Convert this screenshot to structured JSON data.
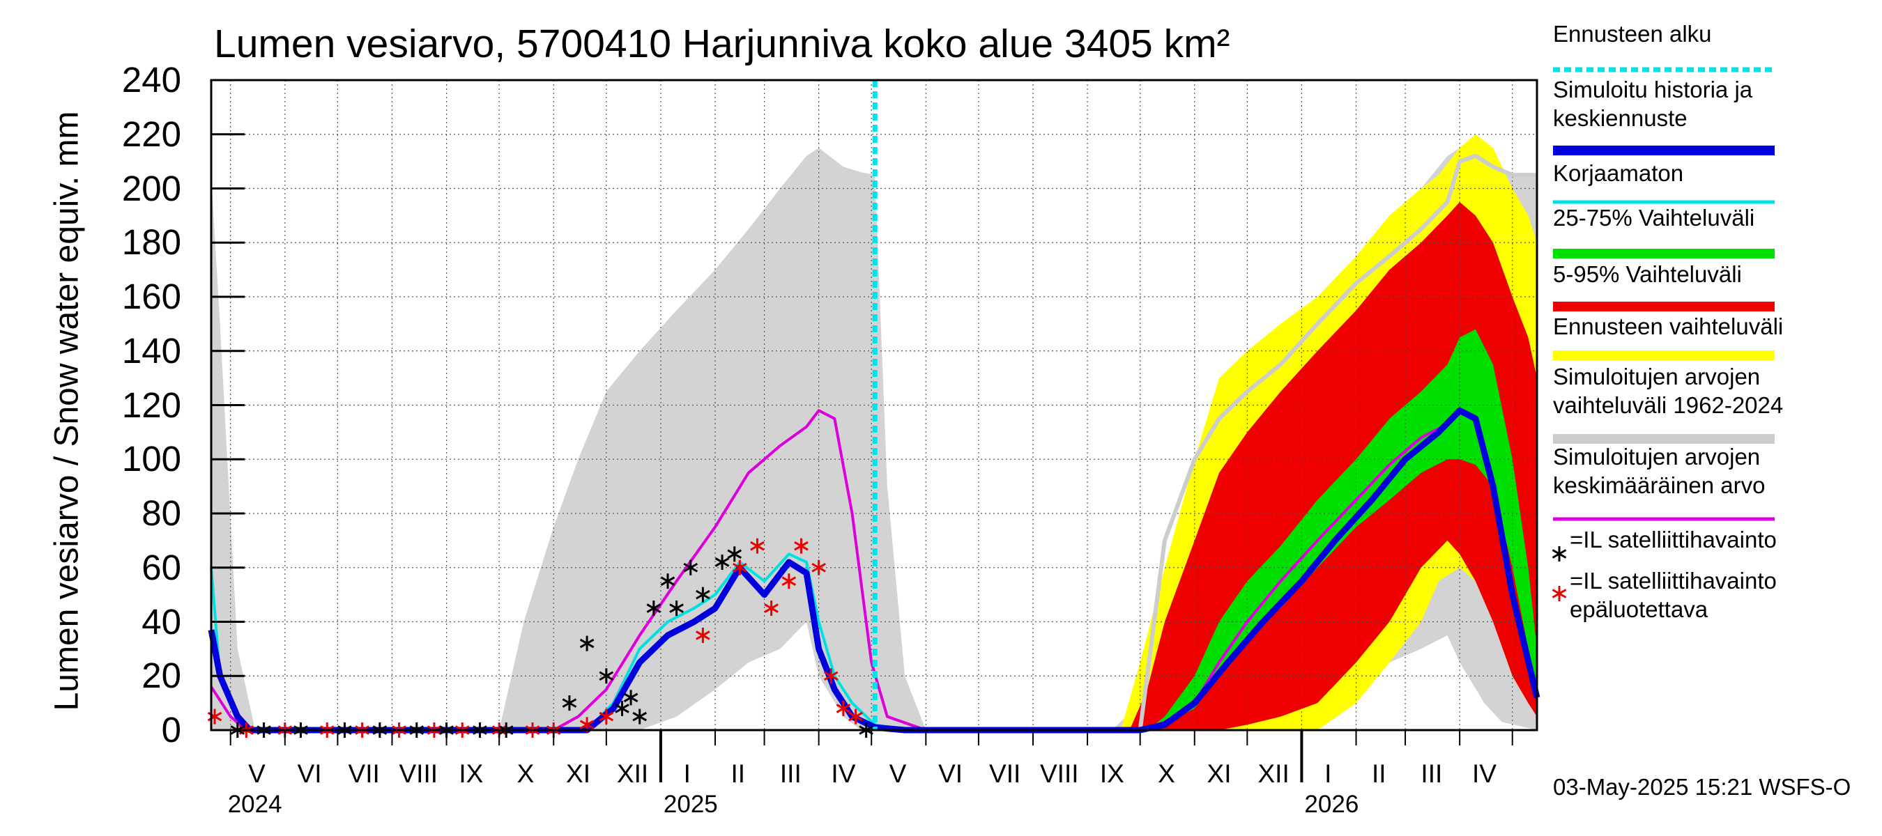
{
  "title": "Lumen vesiarvo, 5700410 Harjunniva koko alue 3405 km²",
  "ylabel": "Lumen vesiarvo / Snow water equiv.    mm",
  "footer": "03-May-2025 15:21 WSFS-O",
  "legend": [
    {
      "label": "Ennusteen alku",
      "color": "#00e5e5",
      "style": "dashed"
    },
    {
      "label": "Simuloitu historia ja keskiennuste",
      "color": "#0000dd",
      "style": "thick"
    },
    {
      "label": "Korjaamaton",
      "color": "#00e0e0",
      "style": "thin"
    },
    {
      "label": "25-75% Vaihteluväli",
      "color": "#00e000",
      "style": "thick"
    },
    {
      "label": "5-95% Vaihteluväli",
      "color": "#ee0000",
      "style": "thick"
    },
    {
      "label": "Ennusteen vaihteluväli",
      "color": "#ffff00",
      "style": "thick"
    },
    {
      "label": "Simuloitujen arvojen vaihteluväli 1962-2024",
      "color": "#cccccc",
      "style": "thick"
    },
    {
      "label": "Simuloitujen arvojen keskimääräinen arvo",
      "color": "#dd00dd",
      "style": "thin"
    },
    {
      "label": "=IL satelliittihavainto",
      "color": "#000000",
      "style": "star"
    },
    {
      "label": "=IL satelliittihavainto epäluotettava",
      "color": "#ee0000",
      "style": "star"
    }
  ],
  "chart_data": {
    "type": "line",
    "title": "Lumen vesiarvo, 5700410 Harjunniva koko alue 3405 km²",
    "ylabel": "Lumen vesiarvo / Snow water equiv. mm",
    "ylim": [
      0,
      240
    ],
    "yticks": [
      0,
      20,
      40,
      60,
      80,
      100,
      120,
      140,
      160,
      180,
      200,
      220,
      240
    ],
    "xlim": [
      "2024-04-20",
      "2026-05-15"
    ],
    "grid": true,
    "forecast_start": "2025-05-03",
    "month_labels": [
      {
        "label": "V",
        "date": "2024-05-16"
      },
      {
        "label": "VI",
        "date": "2024-06-15"
      },
      {
        "label": "VII",
        "date": "2024-07-16"
      },
      {
        "label": "VIII",
        "date": "2024-08-16"
      },
      {
        "label": "IX",
        "date": "2024-09-15"
      },
      {
        "label": "X",
        "date": "2024-10-16"
      },
      {
        "label": "XI",
        "date": "2024-11-15"
      },
      {
        "label": "XII",
        "date": "2024-12-16"
      },
      {
        "label": "I",
        "date": "2025-01-16"
      },
      {
        "label": "II",
        "date": "2025-02-14"
      },
      {
        "label": "III",
        "date": "2025-03-16"
      },
      {
        "label": "IV",
        "date": "2025-04-15"
      },
      {
        "label": "V",
        "date": "2025-05-16"
      },
      {
        "label": "VI",
        "date": "2025-06-15"
      },
      {
        "label": "VII",
        "date": "2025-07-16"
      },
      {
        "label": "VIII",
        "date": "2025-08-16"
      },
      {
        "label": "IX",
        "date": "2025-09-15"
      },
      {
        "label": "X",
        "date": "2025-10-16"
      },
      {
        "label": "XI",
        "date": "2025-11-15"
      },
      {
        "label": "XII",
        "date": "2025-12-16"
      },
      {
        "label": "I",
        "date": "2026-01-16"
      },
      {
        "label": "II",
        "date": "2026-02-14"
      },
      {
        "label": "III",
        "date": "2026-03-16"
      },
      {
        "label": "IV",
        "date": "2026-04-15"
      }
    ],
    "year_labels": [
      {
        "label": "2024",
        "date": "2024-05-01"
      },
      {
        "label": "2025",
        "date": "2025-01-01"
      },
      {
        "label": "2026",
        "date": "2026-01-01"
      }
    ],
    "series": [
      {
        "name": "Simuloitujen arvojen vaihteluväli 1962-2024",
        "kind": "band",
        "color": "#d3d3d3",
        "x": [
          "2024-04-20",
          "2024-04-25",
          "2024-05-05",
          "2024-05-15",
          "2024-10-01",
          "2024-10-15",
          "2024-11-01",
          "2024-11-15",
          "2024-12-01",
          "2024-12-20",
          "2025-01-10",
          "2025-02-01",
          "2025-02-20",
          "2025-03-10",
          "2025-03-25",
          "2025-04-01",
          "2025-04-15",
          "2025-04-25",
          "2025-05-03",
          "2025-05-10",
          "2025-05-20",
          "2025-06-01",
          "2025-09-15",
          "2025-10-01",
          "2025-10-15",
          "2025-11-01",
          "2025-11-15",
          "2025-12-01",
          "2025-12-20",
          "2026-01-10",
          "2026-02-01",
          "2026-02-20",
          "2026-03-10",
          "2026-03-25",
          "2026-04-01",
          "2026-04-15",
          "2026-04-25",
          "2026-05-15"
        ],
        "lower": [
          0,
          0,
          0,
          0,
          0,
          0,
          0,
          0,
          0,
          0,
          5,
          15,
          25,
          30,
          40,
          20,
          5,
          0,
          0,
          0,
          0,
          0,
          0,
          0,
          0,
          0,
          0,
          0,
          0,
          5,
          15,
          25,
          30,
          35,
          25,
          10,
          3,
          0
        ],
        "upper": [
          205,
          150,
          30,
          0,
          0,
          40,
          75,
          100,
          125,
          140,
          155,
          170,
          185,
          200,
          212,
          215,
          208,
          206,
          205,
          90,
          20,
          0,
          0,
          10,
          40,
          80,
          100,
          125,
          140,
          155,
          170,
          185,
          200,
          212,
          215,
          208,
          206,
          205
        ]
      },
      {
        "name": "Ennusteen vaihteluväli",
        "kind": "band",
        "color": "#ffff00",
        "x": [
          "2025-09-20",
          "2025-10-01",
          "2025-10-15",
          "2025-11-01",
          "2025-11-15",
          "2025-12-01",
          "2025-12-20",
          "2026-01-10",
          "2026-02-01",
          "2026-02-20",
          "2026-03-10",
          "2026-03-20",
          "2026-04-01",
          "2026-04-10",
          "2026-04-20",
          "2026-05-01",
          "2026-05-10",
          "2026-05-15"
        ],
        "lower": [
          0,
          0,
          0,
          0,
          0,
          0,
          0,
          0,
          10,
          25,
          40,
          55,
          60,
          55,
          45,
          20,
          10,
          5
        ],
        "upper": [
          0,
          25,
          60,
          100,
          130,
          140,
          150,
          160,
          175,
          190,
          200,
          205,
          215,
          220,
          215,
          200,
          190,
          180
        ]
      },
      {
        "name": "5-95% Vaihteluväli",
        "kind": "band",
        "color": "#ee0000",
        "x": [
          "2025-09-25",
          "2025-10-05",
          "2025-10-15",
          "2025-11-01",
          "2025-11-15",
          "2025-12-01",
          "2025-12-20",
          "2026-01-10",
          "2026-02-01",
          "2026-02-20",
          "2026-03-10",
          "2026-03-25",
          "2026-04-01",
          "2026-04-10",
          "2026-04-20",
          "2026-05-01",
          "2026-05-10",
          "2026-05-15"
        ],
        "lower": [
          0,
          0,
          0,
          0,
          0,
          2,
          5,
          10,
          25,
          40,
          60,
          70,
          65,
          55,
          40,
          20,
          10,
          5
        ],
        "upper": [
          0,
          15,
          40,
          70,
          95,
          110,
          125,
          140,
          155,
          170,
          180,
          190,
          195,
          190,
          180,
          160,
          145,
          130
        ]
      },
      {
        "name": "25-75% Vaihteluväli",
        "kind": "band",
        "color": "#00e000",
        "x": [
          "2025-10-05",
          "2025-10-15",
          "2025-11-01",
          "2025-11-15",
          "2025-12-01",
          "2025-12-20",
          "2026-01-10",
          "2026-02-01",
          "2026-02-20",
          "2026-03-10",
          "2026-03-25",
          "2026-04-01",
          "2026-04-10",
          "2026-04-20",
          "2026-05-01",
          "2026-05-10",
          "2026-05-15"
        ],
        "lower": [
          0,
          2,
          8,
          20,
          35,
          45,
          60,
          75,
          85,
          95,
          100,
          100,
          98,
          90,
          60,
          30,
          15
        ],
        "upper": [
          0,
          5,
          20,
          40,
          55,
          68,
          85,
          100,
          115,
          125,
          135,
          145,
          148,
          135,
          100,
          60,
          30
        ]
      },
      {
        "name": "Simuloitujen arvojen keskimääräinen arvo",
        "kind": "line",
        "color": "#dd00dd",
        "x": [
          "2024-04-20",
          "2024-05-01",
          "2024-05-10",
          "2024-11-01",
          "2024-11-15",
          "2024-12-01",
          "2024-12-20",
          "2025-01-10",
          "2025-02-01",
          "2025-02-20",
          "2025-03-10",
          "2025-03-25",
          "2025-04-01",
          "2025-04-10",
          "2025-04-20",
          "2025-05-01",
          "2025-05-10",
          "2025-06-01",
          "2025-10-01",
          "2025-10-15",
          "2025-11-01",
          "2025-11-15",
          "2025-12-01",
          "2025-12-20",
          "2026-01-10",
          "2026-02-01",
          "2026-02-20",
          "2026-03-10",
          "2026-03-25",
          "2026-04-01",
          "2026-04-10",
          "2026-04-20",
          "2026-05-01",
          "2026-05-15"
        ],
        "y": [
          16,
          5,
          0,
          0,
          5,
          15,
          35,
          55,
          75,
          95,
          105,
          112,
          118,
          115,
          80,
          25,
          5,
          0,
          0,
          3,
          10,
          25,
          40,
          55,
          70,
          85,
          98,
          108,
          113,
          118,
          115,
          90,
          50,
          12
        ]
      },
      {
        "name": "Ennusteen vaihteluväli 2",
        "kind": "line",
        "color": "#cccccc",
        "x": [
          "2025-10-01",
          "2025-10-15",
          "2025-11-01",
          "2025-11-15",
          "2025-12-01",
          "2025-12-20",
          "2026-01-10",
          "2026-02-01",
          "2026-02-20",
          "2026-03-10",
          "2026-03-25",
          "2026-04-01",
          "2026-04-10",
          "2026-04-20",
          "2026-05-01",
          "2026-05-15"
        ],
        "y": [
          0,
          70,
          100,
          115,
          125,
          135,
          150,
          165,
          175,
          185,
          195,
          210,
          212,
          208,
          205,
          205
        ]
      },
      {
        "name": "Korjaamaton",
        "kind": "line",
        "color": "#00e0e0",
        "x": [
          "2024-04-20",
          "2024-04-25",
          "2024-05-05",
          "2024-05-12",
          "2024-11-20",
          "2024-12-05",
          "2024-12-20",
          "2025-01-05",
          "2025-01-20",
          "2025-02-01",
          "2025-02-15",
          "2025-03-01",
          "2025-03-15",
          "2025-03-25",
          "2025-04-01",
          "2025-04-10",
          "2025-04-20",
          "2025-05-03",
          "2025-05-20",
          "2025-10-01",
          "2025-10-15",
          "2025-11-01",
          "2025-11-20",
          "2025-12-10",
          "2026-01-01",
          "2026-01-20",
          "2026-02-10",
          "2026-03-01",
          "2026-03-20",
          "2026-04-01",
          "2026-04-10",
          "2026-04-20",
          "2026-05-01",
          "2026-05-15"
        ],
        "y": [
          60,
          20,
          5,
          0,
          0,
          10,
          30,
          40,
          45,
          50,
          62,
          55,
          65,
          62,
          40,
          20,
          10,
          2,
          0,
          0,
          2,
          10,
          25,
          40,
          55,
          70,
          85,
          100,
          110,
          118,
          115,
          90,
          50,
          12
        ]
      },
      {
        "name": "Simuloitu historia ja keskiennuste",
        "kind": "line",
        "color": "#0000dd",
        "x": [
          "2024-04-20",
          "2024-04-25",
          "2024-05-05",
          "2024-05-12",
          "2024-11-20",
          "2024-12-05",
          "2024-12-20",
          "2025-01-05",
          "2025-01-20",
          "2025-02-01",
          "2025-02-15",
          "2025-03-01",
          "2025-03-15",
          "2025-03-25",
          "2025-04-01",
          "2025-04-10",
          "2025-04-20",
          "2025-05-03",
          "2025-05-20",
          "2025-10-01",
          "2025-10-15",
          "2025-11-01",
          "2025-11-20",
          "2025-12-10",
          "2026-01-01",
          "2026-01-20",
          "2026-02-10",
          "2026-03-01",
          "2026-03-20",
          "2026-04-01",
          "2026-04-10",
          "2026-04-20",
          "2026-05-01",
          "2026-05-15"
        ],
        "y": [
          37,
          20,
          5,
          0,
          0,
          8,
          25,
          35,
          40,
          45,
          60,
          50,
          62,
          58,
          30,
          15,
          5,
          1,
          0,
          0,
          2,
          10,
          25,
          40,
          55,
          70,
          85,
          100,
          110,
          118,
          115,
          90,
          50,
          12
        ]
      }
    ],
    "satellite_obs": {
      "name": "=IL satelliittihavainto",
      "color": "#000000",
      "x": [
        "2024-05-05",
        "2024-05-20",
        "2024-06-10",
        "2024-07-05",
        "2024-07-25",
        "2024-08-15",
        "2024-09-01",
        "2024-09-20",
        "2024-10-05",
        "2024-11-10",
        "2024-11-20",
        "2024-12-01",
        "2024-12-10",
        "2024-12-15",
        "2024-12-20",
        "2024-12-28",
        "2025-01-05",
        "2025-01-10",
        "2025-01-18",
        "2025-01-25",
        "2025-02-05",
        "2025-02-12",
        "2025-04-28"
      ],
      "y": [
        0,
        0,
        0,
        0,
        0,
        0,
        0,
        0,
        0,
        10,
        32,
        20,
        8,
        12,
        5,
        45,
        55,
        45,
        60,
        50,
        62,
        65,
        0
      ]
    },
    "satellite_obs_unreliable": {
      "name": "=IL satelliittihavainto epäluotettava",
      "color": "#ee0000",
      "x": [
        "2024-04-22",
        "2024-05-10",
        "2024-06-01",
        "2024-06-25",
        "2024-07-15",
        "2024-08-05",
        "2024-08-25",
        "2024-09-10",
        "2024-10-01",
        "2024-10-20",
        "2024-11-01",
        "2024-11-20",
        "2024-12-01",
        "2025-01-25",
        "2025-02-15",
        "2025-02-25",
        "2025-03-05",
        "2025-03-15",
        "2025-03-22",
        "2025-04-01",
        "2025-04-08",
        "2025-04-15",
        "2025-04-22"
      ],
      "y": [
        5,
        0,
        0,
        0,
        0,
        0,
        0,
        0,
        0,
        0,
        0,
        2,
        5,
        35,
        60,
        68,
        45,
        55,
        68,
        60,
        20,
        8,
        5
      ]
    }
  }
}
